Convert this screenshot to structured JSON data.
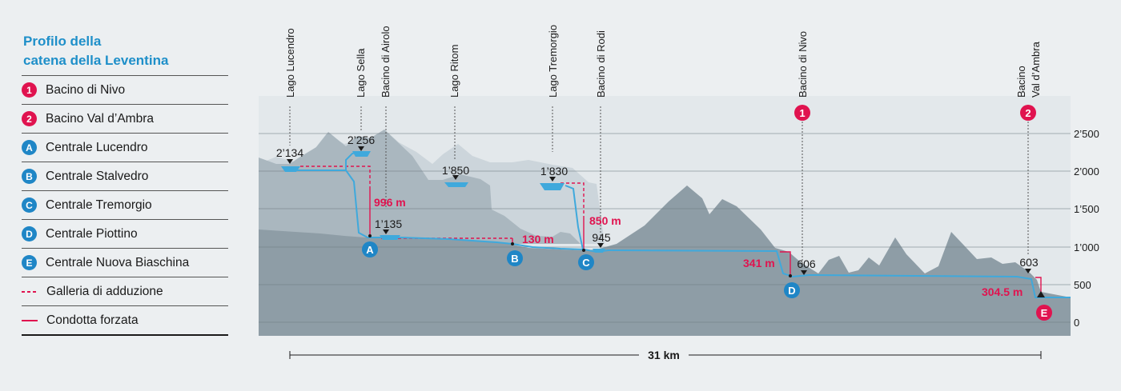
{
  "legend": {
    "title_line1": "Profilo della",
    "title_line2": "catena della Leventina",
    "items": [
      {
        "badge": "1",
        "label": "Bacino di Nivo",
        "color": "#e0134f"
      },
      {
        "badge": "2",
        "label": "Bacino Val d’Ambra",
        "color": "#e0134f"
      },
      {
        "badge": "A",
        "label": "Centrale Lucendro",
        "color": "#1f86c6"
      },
      {
        "badge": "B",
        "label": "Centrale Stalvedro",
        "color": "#1f86c6"
      },
      {
        "badge": "C",
        "label": "Centrale Tremorgio",
        "color": "#1f86c6"
      },
      {
        "badge": "D",
        "label": "Centrale Piottino",
        "color": "#1f86c6"
      },
      {
        "badge": "E",
        "label": "Centrale Nuova Biaschina",
        "color": "#1f86c6"
      },
      {
        "symbol": "dashed",
        "label": "Galleria di adduzione",
        "color": "#e0134f"
      },
      {
        "symbol": "solid",
        "label": "Condotta forzata",
        "color": "#e0134f"
      }
    ]
  },
  "top_labels": [
    {
      "text": "Lago Lucendro"
    },
    {
      "text": "Lago Sella"
    },
    {
      "text": "Bacino di Airolo"
    },
    {
      "text": "Lago Ritom"
    },
    {
      "text": "Lago Tremorgio"
    },
    {
      "text": "Bacino di Rodi"
    },
    {
      "text": "Bacino di Nivo"
    },
    {
      "text": "Bacino"
    },
    {
      "text": "Val d’Ambra"
    }
  ],
  "reservoir_badges": [
    "1",
    "2"
  ],
  "elevation_labels": [
    "2’134",
    "2’256",
    "1’850",
    "1’830",
    "1’135",
    "945",
    "606",
    "603"
  ],
  "drops": [
    "996 m",
    "130 m",
    "850 m",
    "341 m",
    "304.5 m"
  ],
  "plants": [
    "A",
    "B",
    "C",
    "D",
    "E"
  ],
  "y_ticks": [
    "2’500",
    "2’000",
    "1’500",
    "1’000",
    "500",
    "0"
  ],
  "distance": "31 km",
  "colors": {
    "accent_blue": "#1e8fc9",
    "water": "#3fa9dc",
    "red": "#e0134f",
    "mountain_light": "#ccd5db",
    "mountain_mid": "#aab7bf",
    "mountain_dark": "#8e9da6",
    "background": "#eceff1"
  }
}
